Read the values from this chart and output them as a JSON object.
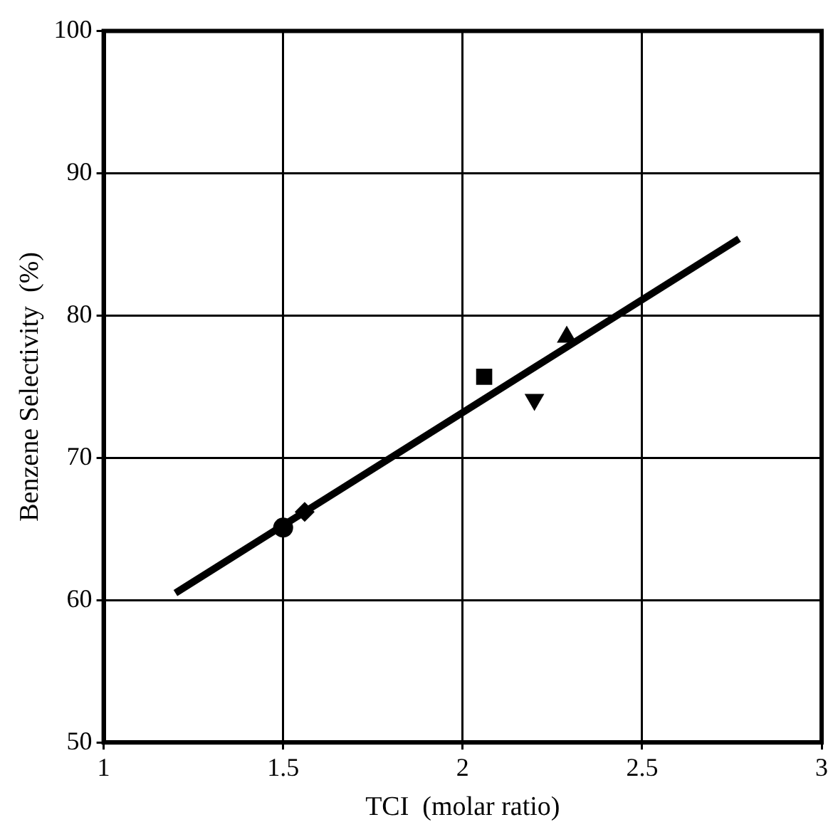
{
  "chart_data": {
    "type": "scatter",
    "xlabel": "TCI  (molar ratio)",
    "ylabel": "Benzene Selectivity  (%)",
    "xlim": [
      1,
      3
    ],
    "xticks": [
      1,
      1.5,
      2,
      2.5,
      3
    ],
    "ylim": [
      50,
      100
    ],
    "yticks": [
      50,
      60,
      70,
      80,
      90,
      100
    ],
    "grid": true,
    "legend": false,
    "series": [
      {
        "color": "#000000",
        "marker": "circle",
        "x": [
          1.5
        ],
        "values": [
          65.1
        ]
      },
      {
        "color": "#000000",
        "marker": "diamond",
        "x": [
          1.56
        ],
        "values": [
          66.2
        ]
      },
      {
        "color": "#000000",
        "marker": "square",
        "x": [
          2.06
        ],
        "values": [
          75.7
        ]
      },
      {
        "color": "#000000",
        "marker": "triangle-down",
        "x": [
          2.2
        ],
        "values": [
          74.1
        ]
      },
      {
        "color": "#000000",
        "marker": "triangle",
        "x": [
          2.29
        ],
        "values": [
          78.5
        ]
      },
      {
        "type": "line",
        "color": "#000000",
        "marker": "none",
        "x": [
          1.2,
          2.77
        ],
        "values": [
          60.5,
          85.4
        ]
      }
    ]
  }
}
